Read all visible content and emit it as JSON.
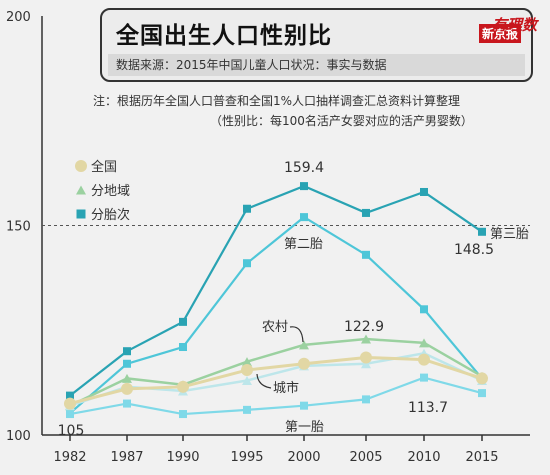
{
  "header": {
    "title": "全国出生人口性别比",
    "source": "数据来源：2015年中国儿童人口状况：事实与数据",
    "logo_a": "新京报",
    "logo_b": "有理数"
  },
  "notes": {
    "line1": "注：根据历年全国人口普查和全国1%人口抽样调查汇总资料计算整理",
    "line2": "（性别比：每100名活产女婴对应的活产男婴数）"
  },
  "chart_data": {
    "type": "line",
    "x": [
      "1982",
      "1987",
      "1990",
      "1995",
      "2000",
      "2005",
      "2010",
      "2015"
    ],
    "ylim": [
      100,
      200
    ],
    "yticks": [
      "100",
      "150",
      "200"
    ],
    "reference_line": 150,
    "legend": [
      "全国",
      "分地域",
      "分胎次"
    ],
    "series": [
      {
        "name": "第三胎",
        "group": "分胎次",
        "values": [
          109.4,
          120.0,
          127.0,
          154.0,
          159.4,
          153.0,
          158.0,
          148.5
        ]
      },
      {
        "name": "第二胎",
        "group": "分胎次",
        "values": [
          105.2,
          117.0,
          121.0,
          141.0,
          152.0,
          143.0,
          130.0,
          113.5
        ]
      },
      {
        "name": "第一胎",
        "group": "分胎次",
        "values": [
          105.0,
          107.5,
          105.0,
          106.0,
          107.0,
          108.5,
          113.7,
          110.0
        ]
      },
      {
        "name": "农村",
        "group": "分地域",
        "values": [
          107.0,
          113.5,
          112.0,
          117.5,
          121.5,
          122.9,
          122.0,
          114.0
        ]
      },
      {
        "name": "城市",
        "group": "分地域",
        "values": [
          107.0,
          111.5,
          110.5,
          113.0,
          116.5,
          117.0,
          119.5,
          113.0
        ]
      },
      {
        "name": "全国",
        "group": "全国",
        "values": [
          107.5,
          111.0,
          111.5,
          115.5,
          117.0,
          118.5,
          118.0,
          113.5
        ]
      }
    ],
    "labels": {
      "v_2000": "159.4",
      "v_2015": "148.5",
      "v_2005": "122.9",
      "v_2010": "113.7",
      "v_1982": "105",
      "third": "第三胎",
      "second": "第二胎",
      "first": "第一胎",
      "rural": "农村",
      "urban": "城市"
    }
  },
  "colors": {
    "third": "#29a3b3",
    "second": "#4ec6d8",
    "first": "#7fd9e8",
    "rural": "#9bd1a0",
    "urban": "#bde6ea",
    "national": "#e2d7a4"
  }
}
